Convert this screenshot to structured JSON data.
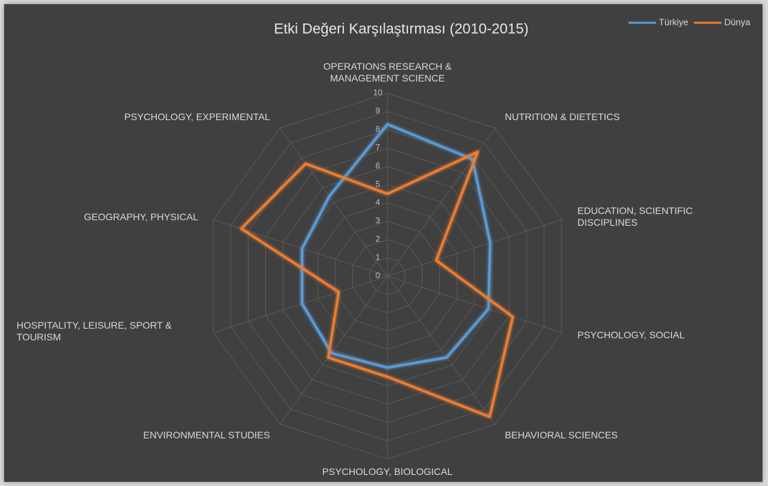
{
  "chart_data": {
    "type": "radar",
    "title": "Etki Değeri Karşılaştırması (2010-2015)",
    "categories": [
      "OPERATIONS RESEARCH & MANAGEMENT SCIENCE",
      "NUTRITION & DIETETICS",
      "EDUCATION, SCIENTIFIC DISCIPLINES",
      "PSYCHOLOGY, SOCIAL",
      "BEHAVIORAL SCIENCES",
      "PSYCHOLOGY, BIOLOGICAL",
      "ENVIRONMENTAL STUDIES",
      "HOSPITALITY, LEISURE, SPORT & TOURISM",
      "GEOGRAPHY, PHYSICAL",
      "PSYCHOLOGY, EXPERIMENTAL"
    ],
    "series": [
      {
        "name": "Türkiye",
        "color": "#5b9bd5",
        "values": [
          8.3,
          7.9,
          5.9,
          5.8,
          5.5,
          5.0,
          5.2,
          4.9,
          4.9,
          5.4
        ]
      },
      {
        "name": "Dünya",
        "color": "#ed7d31",
        "values": [
          4.5,
          8.4,
          2.8,
          7.2,
          9.5,
          5.5,
          5.5,
          2.8,
          8.4,
          7.6
        ]
      }
    ],
    "rlim": [
      0,
      10
    ],
    "rticks": [
      0,
      1,
      2,
      3,
      4,
      5,
      6,
      7,
      8,
      9,
      10
    ],
    "grid": true,
    "legend": "top-right"
  }
}
